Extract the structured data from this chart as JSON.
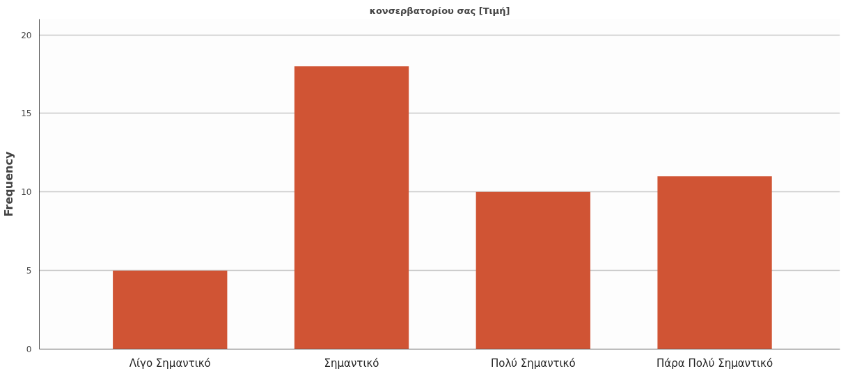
{
  "chart_data": {
    "type": "bar",
    "title": "κονσερβατορίου σας [Τιμή]",
    "ylabel": "Frequency",
    "categories": [
      "Λίγο Σημαντικό",
      "Σημαντικό",
      "Πολύ Σημαντικό",
      "Πάρα Πολύ Σημαντικό"
    ],
    "values": [
      5,
      18,
      10,
      11
    ],
    "color": "#d05434",
    "ylim": [
      0,
      21
    ],
    "yticks": [
      0,
      5,
      10,
      15,
      20
    ],
    "grid": "y"
  }
}
